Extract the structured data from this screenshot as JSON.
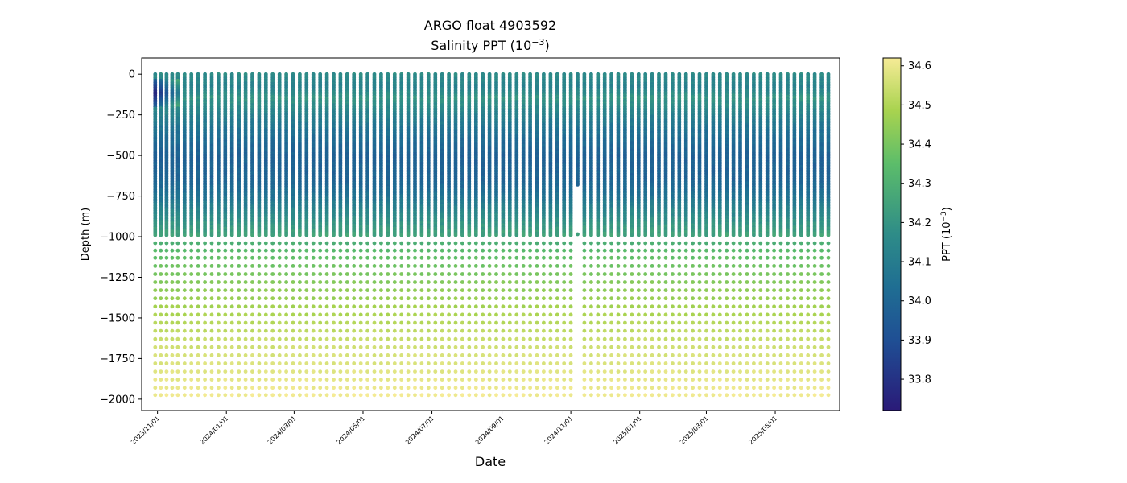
{
  "chart_data": {
    "type": "scatter",
    "title": "ARGO float 4903592",
    "subtitle_text": "Salinity PPT (10",
    "subtitle_exp": "−3",
    "subtitle_close": ")",
    "xlabel": "Date",
    "ylabel": "Depth (m)",
    "colorbar_label_text": "PPT (10",
    "colorbar_label_exp": "−3",
    "colorbar_label_close": ")",
    "xlim": [
      "2023-10-18",
      "2025-06-27"
    ],
    "ylim": [
      -2070,
      100
    ],
    "yticks": [
      0,
      -250,
      -500,
      -750,
      -1000,
      -1250,
      -1500,
      -1750,
      -2000
    ],
    "ytick_labels": [
      "0",
      "−250",
      "−500",
      "−750",
      "−1000",
      "−1250",
      "−1500",
      "−1750",
      "−2000"
    ],
    "xticks": [
      "2023-11-01",
      "2024-01-01",
      "2024-03-01",
      "2024-05-01",
      "2024-07-01",
      "2024-09-01",
      "2024-11-01",
      "2025-01-01",
      "2025-03-01",
      "2025-05-01"
    ],
    "xtick_labels": [
      "2023/11/01",
      "2024/01/01",
      "2024/03/01",
      "2024/05/01",
      "2024/07/01",
      "2024/09/01",
      "2024/11/01",
      "2025/01/01",
      "2025/03/01",
      "2025/05/01"
    ],
    "colorbar": {
      "colormap": "summer-like viridis: #2a1a78 → #1f5c96 → #2e8c88 → #5cbd6a → #a8d34f → #f6eb96",
      "min": 33.72,
      "max": 34.62,
      "ticks": [
        33.8,
        33.9,
        34.0,
        34.1,
        34.2,
        34.3,
        34.4,
        34.5,
        34.6
      ],
      "tick_labels": [
        "33.8",
        "33.9",
        "34.0",
        "34.1",
        "34.2",
        "34.3",
        "34.4",
        "34.5",
        "34.6"
      ]
    },
    "profile_dates": [
      "2023-10-30",
      "2023-11-04",
      "2023-11-09",
      "2023-11-14",
      "2023-11-19",
      "2023-11-25",
      "2023-12-01",
      "2023-12-07",
      "2023-12-13",
      "2023-12-19",
      "2023-12-25",
      "2023-12-31",
      "2024-01-06",
      "2024-01-12",
      "2024-01-18",
      "2024-01-24",
      "2024-01-30",
      "2024-02-05",
      "2024-02-11",
      "2024-02-17",
      "2024-02-23",
      "2024-02-29",
      "2024-03-06",
      "2024-03-12",
      "2024-03-18",
      "2024-03-24",
      "2024-03-30",
      "2024-04-05",
      "2024-04-11",
      "2024-04-17",
      "2024-04-23",
      "2024-04-29",
      "2024-05-05",
      "2024-05-11",
      "2024-05-17",
      "2024-05-23",
      "2024-05-29",
      "2024-06-04",
      "2024-06-10",
      "2024-06-16",
      "2024-06-22",
      "2024-06-28",
      "2024-07-04",
      "2024-07-10",
      "2024-07-16",
      "2024-07-22",
      "2024-07-28",
      "2024-08-03",
      "2024-08-09",
      "2024-08-15",
      "2024-08-21",
      "2024-08-27",
      "2024-09-02",
      "2024-09-08",
      "2024-09-14",
      "2024-09-20",
      "2024-09-26",
      "2024-10-02",
      "2024-10-08",
      "2024-10-14",
      "2024-10-20",
      "2024-10-26",
      "2024-11-01",
      "2024-11-07",
      "2024-11-13",
      "2024-11-19",
      "2024-11-25",
      "2024-12-01",
      "2024-12-07",
      "2024-12-13",
      "2024-12-19",
      "2024-12-25",
      "2024-12-31",
      "2025-01-06",
      "2025-01-12",
      "2025-01-18",
      "2025-01-24",
      "2025-01-30",
      "2025-02-05",
      "2025-02-11",
      "2025-02-17",
      "2025-02-23",
      "2025-03-01",
      "2025-03-07",
      "2025-03-13",
      "2025-03-19",
      "2025-03-25",
      "2025-03-31",
      "2025-04-06",
      "2025-04-12",
      "2025-04-18",
      "2025-04-24",
      "2025-04-30",
      "2025-05-06",
      "2025-05-12",
      "2025-05-18",
      "2025-05-24",
      "2025-05-30",
      "2025-06-05",
      "2025-06-11",
      "2025-06-17"
    ],
    "deep_levels_m": [
      -1040,
      -1085,
      -1130,
      -1180,
      -1230,
      -1280,
      -1330,
      -1380,
      -1430,
      -1480,
      -1530,
      -1580,
      -1630,
      -1680,
      -1730,
      -1780,
      -1830,
      -1880,
      -1930,
      -1975
    ],
    "salinity_profile": [
      {
        "depth": 0,
        "ppt": 34.17
      },
      {
        "depth": -80,
        "ppt": 34.12
      },
      {
        "depth": -150,
        "ppt": 34.2
      },
      {
        "depth": -250,
        "ppt": 34.12
      },
      {
        "depth": -350,
        "ppt": 34.05
      },
      {
        "depth": -500,
        "ppt": 33.98
      },
      {
        "depth": -650,
        "ppt": 33.99
      },
      {
        "depth": -750,
        "ppt": 34.05
      },
      {
        "depth": -850,
        "ppt": 34.14
      },
      {
        "depth": -980,
        "ppt": 34.24
      },
      {
        "depth": -1100,
        "ppt": 34.35
      },
      {
        "depth": -1300,
        "ppt": 34.43
      },
      {
        "depth": -1500,
        "ppt": 34.5
      },
      {
        "depth": -1700,
        "ppt": 34.56
      },
      {
        "depth": -1975,
        "ppt": 34.61
      }
    ],
    "shallow_anomaly_minimum_ppt": 33.75,
    "short_profile": {
      "date": "2024-11-07",
      "bottom_depth": -680,
      "isolated_point_depth": -985
    },
    "grid": false
  }
}
